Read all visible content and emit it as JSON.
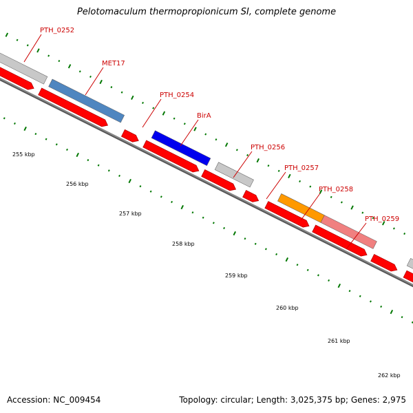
{
  "title": "Pelotomaculum thermopropionicum SI, complete genome",
  "footer": {
    "accession": "Accession: NC_009454",
    "topology": "Topology: circular; Length: 3,025,375 bp; Genes: 2,975"
  },
  "colors": {
    "backbone": "#888888",
    "cds": "#ff0000",
    "tick": "#007700",
    "label": "#cc0000",
    "leader": "#cc0000"
  },
  "kbp_ticks": [
    {
      "kbp": 255,
      "label": "255 kbp"
    },
    {
      "kbp": 256,
      "label": "256 kbp"
    },
    {
      "kbp": 257,
      "label": "257 kbp"
    },
    {
      "kbp": 258,
      "label": "258 kbp"
    },
    {
      "kbp": 259,
      "label": "259 kbp"
    },
    {
      "kbp": 260,
      "label": "260 kbp"
    },
    {
      "kbp": 261,
      "label": "261 kbp"
    },
    {
      "kbp": 262,
      "label": "262 kbp"
    }
  ],
  "labeled_genes": [
    {
      "name": "PTH_0252",
      "color": "#c8c8c8"
    },
    {
      "name": "MET17",
      "color": "#4f86c0"
    },
    {
      "name": "PTH_0254",
      "color": null
    },
    {
      "name": "BirA",
      "color": "#0000ee"
    },
    {
      "name": "PTH_0256",
      "color": "#c8c8c8"
    },
    {
      "name": "PTH_0257",
      "color": null
    },
    {
      "name": "PTH_0258",
      "color": "#ff9900"
    },
    {
      "name": "PTH_0259",
      "color": "#f08080"
    }
  ]
}
